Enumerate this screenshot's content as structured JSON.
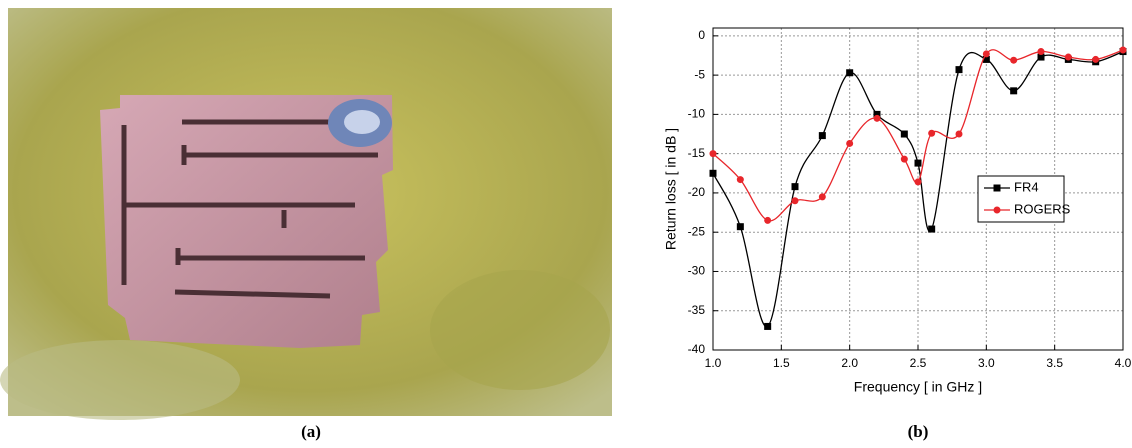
{
  "photo_caption": "(a)",
  "chart_caption": "(b)",
  "chart_data": {
    "type": "line",
    "x_label": "Frequency [ in GHz ]",
    "y_label": "Return loss [ in dB ]",
    "x": [
      1.0,
      1.2,
      1.4,
      1.6,
      1.8,
      2.0,
      2.2,
      2.4,
      2.5,
      2.6,
      2.8,
      3.0,
      3.2,
      3.4,
      3.6,
      3.8,
      4.0
    ],
    "series": [
      {
        "name": "FR4",
        "color": "#000000",
        "marker": "square",
        "values": [
          -17.5,
          -24.3,
          -37,
          -19.2,
          -12.7,
          -4.7,
          -10,
          -12.5,
          -16.2,
          -24.6,
          -4.3,
          -3,
          -7,
          -2.7,
          -3,
          -3.3,
          -2
        ]
      },
      {
        "name": "ROGERS",
        "color": "#e8262b",
        "marker": "circle",
        "values": [
          -15,
          -18.3,
          -23.5,
          -21,
          -20.5,
          -13.7,
          -10.5,
          -15.7,
          -18.6,
          -12.4,
          -12.5,
          -2.3,
          -3.1,
          -2,
          -2.7,
          -3,
          -1.8
        ]
      }
    ],
    "xlim": [
      1,
      4
    ],
    "xticks": [
      {
        "value": 1,
        "label": "1.0"
      },
      {
        "value": 1.5,
        "label": "1.5"
      },
      {
        "value": 2,
        "label": "2.0"
      },
      {
        "value": 2.5,
        "label": "2.5"
      },
      {
        "value": 3,
        "label": "3.0"
      },
      {
        "value": 3.5,
        "label": "3.5"
      },
      {
        "value": 4,
        "label": "4.0"
      }
    ],
    "ylim": [
      -40,
      1
    ],
    "yticks": [
      -40,
      -35,
      -30,
      -25,
      -20,
      -15,
      -10,
      -5,
      0
    ],
    "grid": true,
    "legend": "right"
  }
}
